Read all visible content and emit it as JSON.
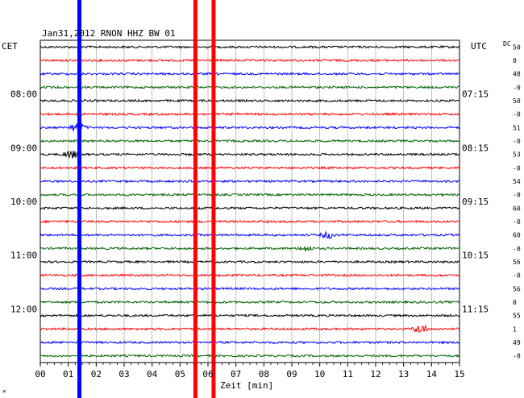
{
  "chart_data": {
    "type": "line",
    "header": "Jan31,2012   RNON HHZ BW 01",
    "left_axis_title": "CET",
    "right_axis_title": "UTC",
    "dc_label": "DC",
    "xlabel": "Zeit [min]",
    "xlim": [
      0,
      15
    ],
    "x_ticks": [
      "00",
      "01",
      "02",
      "03",
      "04",
      "05",
      "06",
      "07",
      "08",
      "09",
      "10",
      "11",
      "12",
      "13",
      "14",
      "15"
    ],
    "trace_colors": [
      "#000000",
      "#ff0000",
      "#0000ff",
      "#006400"
    ],
    "trace_count": 24,
    "time_labels_left": [
      {
        "row": 4,
        "label": "08:00"
      },
      {
        "row": 8,
        "label": "09:00"
      },
      {
        "row": 12,
        "label": "10:00"
      },
      {
        "row": 16,
        "label": "11:00"
      },
      {
        "row": 20,
        "label": "12:00"
      }
    ],
    "time_labels_right": [
      {
        "row": 4,
        "label": "07:15"
      },
      {
        "row": 8,
        "label": "08:15"
      },
      {
        "row": 12,
        "label": "09:15"
      },
      {
        "row": 16,
        "label": "10:15"
      },
      {
        "row": 20,
        "label": "11:15"
      }
    ],
    "dc_values": [
      "50",
      "0",
      "48",
      "-0",
      "50",
      "-0",
      "51",
      "-0",
      "53",
      "-0",
      "54",
      "-0",
      "60",
      "-0",
      "60",
      "-0",
      "56",
      "-0",
      "56",
      "0",
      "55",
      "1",
      "49",
      "-0"
    ],
    "events": [
      {
        "row": 6,
        "minute": 1.35,
        "amplitude": 2.2
      },
      {
        "row": 8,
        "minute": 1.1,
        "amplitude": 1.6
      },
      {
        "row": 14,
        "minute": 10.3,
        "amplitude": 1.3
      },
      {
        "row": 15,
        "minute": 9.5,
        "amplitude": 1.1
      },
      {
        "row": 21,
        "minute": 13.6,
        "amplitude": 1.8
      }
    ],
    "vertical_bands": [
      {
        "minute": 1.4,
        "color": "#0000ff"
      },
      {
        "minute": 5.55,
        "color": "#ff0000"
      },
      {
        "minute": 6.2,
        "color": "#ff0000"
      }
    ],
    "corner_mark": "✕"
  }
}
